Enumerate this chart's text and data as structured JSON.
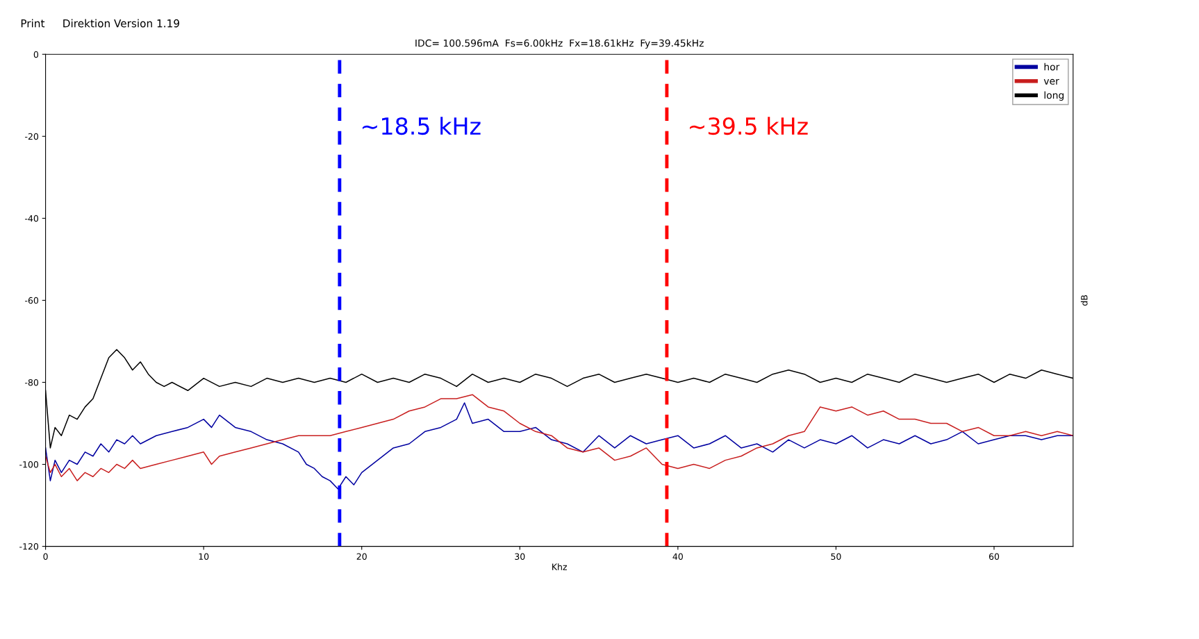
{
  "chart_data": {
    "type": "line",
    "title": "IDC= 100.596mA  Fs=6.00kHz  Fx=18.61kHz  Fy=39.45kHz",
    "xlabel": "Khz",
    "ylabel": "dB",
    "annotations": [
      "Print",
      "Direktion",
      "Version 1.19"
    ],
    "xlim": [
      0,
      65
    ],
    "ylim": [
      -120,
      0
    ],
    "xticks": [
      0,
      10,
      20,
      30,
      40,
      50,
      60
    ],
    "yticks": [
      -120,
      -100,
      -80,
      -60,
      -40,
      -20,
      0
    ],
    "grid": false,
    "legend": "top right",
    "marker": "none",
    "line_style": "solid",
    "ref_lines": [
      {
        "axis": "x",
        "value": 18.6,
        "label": "~18.5 kHz",
        "color": "#0000ff",
        "line_style": "dashed"
      },
      {
        "axis": "x",
        "value": 39.3,
        "label": "~39.5 kHz",
        "color": "#ff0000",
        "line_style": "dashed"
      }
    ],
    "series": [
      {
        "name": "hor",
        "color": "#0000a0",
        "x": [
          0,
          0.3,
          0.6,
          1,
          1.5,
          2,
          2.5,
          3,
          3.5,
          4,
          4.5,
          5,
          5.5,
          6,
          7,
          8,
          9,
          10,
          10.5,
          11,
          12,
          13,
          14,
          15,
          16,
          16.5,
          17,
          17.5,
          18,
          18.5,
          19,
          19.5,
          20,
          21,
          22,
          23,
          24,
          25,
          26,
          26.5,
          27,
          28,
          29,
          30,
          31,
          32,
          33,
          34,
          35,
          36,
          37,
          38,
          39,
          40,
          41,
          42,
          43,
          44,
          45,
          46,
          47,
          48,
          49,
          50,
          51,
          52,
          53,
          54,
          55,
          56,
          57,
          58,
          59,
          60,
          61,
          62,
          63,
          64,
          65
        ],
        "values": [
          -96,
          -104,
          -99,
          -102,
          -99,
          -100,
          -97,
          -98,
          -95,
          -97,
          -94,
          -95,
          -93,
          -95,
          -93,
          -92,
          -91,
          -89,
          -91,
          -88,
          -91,
          -92,
          -94,
          -95,
          -97,
          -100,
          -101,
          -103,
          -104,
          -106,
          -103,
          -105,
          -102,
          -99,
          -96,
          -95,
          -92,
          -91,
          -89,
          -85,
          -90,
          -89,
          -92,
          -92,
          -91,
          -94,
          -95,
          -97,
          -93,
          -96,
          -93,
          -95,
          -94,
          -93,
          -96,
          -95,
          -93,
          -96,
          -95,
          -97,
          -94,
          -96,
          -94,
          -95,
          -93,
          -96,
          -94,
          -95,
          -93,
          -95,
          -94,
          -92,
          -95,
          -94,
          -93,
          -93,
          -94,
          -93,
          -93
        ]
      },
      {
        "name": "ver",
        "color": "#c81e1e",
        "x": [
          0,
          0.3,
          0.6,
          1,
          1.5,
          2,
          2.5,
          3,
          3.5,
          4,
          4.5,
          5,
          5.5,
          6,
          7,
          8,
          9,
          10,
          10.5,
          11,
          12,
          13,
          14,
          15,
          16,
          17,
          18,
          19,
          20,
          21,
          22,
          23,
          24,
          25,
          26,
          27,
          28,
          29,
          30,
          31,
          32,
          33,
          34,
          35,
          36,
          37,
          38,
          39,
          40,
          41,
          42,
          43,
          44,
          45,
          46,
          47,
          48,
          48.5,
          49,
          50,
          51,
          52,
          53,
          54,
          55,
          56,
          57,
          58,
          59,
          60,
          61,
          62,
          63,
          64,
          65
        ],
        "values": [
          -98,
          -102,
          -100,
          -103,
          -101,
          -104,
          -102,
          -103,
          -101,
          -102,
          -100,
          -101,
          -99,
          -101,
          -100,
          -99,
          -98,
          -97,
          -100,
          -98,
          -97,
          -96,
          -95,
          -94,
          -93,
          -93,
          -93,
          -92,
          -91,
          -90,
          -89,
          -87,
          -86,
          -84,
          -84,
          -83,
          -86,
          -87,
          -90,
          -92,
          -93,
          -96,
          -97,
          -96,
          -99,
          -98,
          -96,
          -100,
          -101,
          -100,
          -101,
          -99,
          -98,
          -96,
          -95,
          -93,
          -92,
          -89,
          -86,
          -87,
          -86,
          -88,
          -87,
          -89,
          -89,
          -90,
          -90,
          -92,
          -91,
          -93,
          -93,
          -92,
          -93,
          -92,
          -93
        ]
      },
      {
        "name": "long",
        "color": "#000000",
        "x": [
          0,
          0.3,
          0.6,
          1,
          1.5,
          2,
          2.5,
          3,
          3.5,
          4,
          4.5,
          5,
          5.5,
          6,
          6.5,
          7,
          7.5,
          8,
          9,
          10,
          11,
          12,
          13,
          14,
          15,
          16,
          17,
          18,
          19,
          20,
          21,
          22,
          23,
          24,
          25,
          26,
          27,
          28,
          29,
          30,
          31,
          32,
          33,
          34,
          35,
          36,
          37,
          38,
          39,
          40,
          41,
          42,
          43,
          44,
          45,
          46,
          47,
          48,
          49,
          50,
          51,
          52,
          53,
          54,
          55,
          56,
          57,
          58,
          59,
          60,
          61,
          62,
          63,
          64,
          65
        ],
        "values": [
          -82,
          -96,
          -91,
          -93,
          -88,
          -89,
          -86,
          -84,
          -79,
          -74,
          -72,
          -74,
          -77,
          -75,
          -78,
          -80,
          -81,
          -80,
          -82,
          -79,
          -81,
          -80,
          -81,
          -79,
          -80,
          -79,
          -80,
          -79,
          -80,
          -78,
          -80,
          -79,
          -80,
          -78,
          -79,
          -81,
          -78,
          -80,
          -79,
          -80,
          -78,
          -79,
          -81,
          -79,
          -78,
          -80,
          -79,
          -78,
          -79,
          -80,
          -79,
          -80,
          -78,
          -79,
          -80,
          -78,
          -77,
          -78,
          -80,
          -79,
          -80,
          -78,
          -79,
          -80,
          -78,
          -79,
          -80,
          -79,
          -78,
          -80,
          -78,
          -79,
          -77,
          -78,
          -79
        ]
      }
    ]
  }
}
